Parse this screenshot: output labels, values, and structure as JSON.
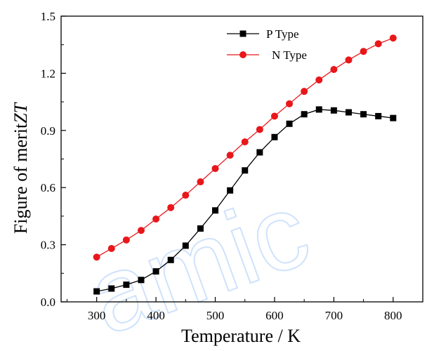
{
  "chart_data": {
    "type": "line",
    "xlabel": "Temperature / K",
    "ylabel_prefix": "Figure of merit",
    "ylabel_italic": "ZT",
    "xlim": [
      240,
      850
    ],
    "ylim": [
      0.0,
      1.5
    ],
    "x_ticks": [
      300,
      400,
      500,
      600,
      700,
      800
    ],
    "x_tick_labels": [
      "300",
      "400",
      "500",
      "600",
      "700",
      "800"
    ],
    "y_ticks": [
      0.0,
      0.3,
      0.6,
      0.9,
      1.2,
      1.5
    ],
    "y_tick_labels": [
      "0.0",
      "0.3",
      "0.6",
      "0.9",
      "1.2",
      "1.5"
    ],
    "grid": false,
    "legend_position": "top-center",
    "x": [
      300,
      325,
      350,
      375,
      400,
      425,
      450,
      475,
      500,
      525,
      550,
      575,
      600,
      625,
      650,
      675,
      700,
      725,
      750,
      775,
      800
    ],
    "series": [
      {
        "name": "P Type",
        "color": "#000000",
        "marker": "square",
        "values": [
          0.055,
          0.07,
          0.09,
          0.115,
          0.16,
          0.22,
          0.295,
          0.385,
          0.48,
          0.585,
          0.69,
          0.785,
          0.865,
          0.935,
          0.985,
          1.01,
          1.005,
          0.995,
          0.985,
          0.975,
          0.965
        ]
      },
      {
        "name": "N Type",
        "color": "#e8171b",
        "marker": "circle",
        "values": [
          0.235,
          0.28,
          0.325,
          0.375,
          0.435,
          0.495,
          0.56,
          0.63,
          0.7,
          0.77,
          0.84,
          0.905,
          0.975,
          1.04,
          1.105,
          1.165,
          1.22,
          1.27,
          1.315,
          1.355,
          1.385
        ]
      }
    ]
  },
  "watermark": {
    "text": "amic",
    "color": "#cfe2fb"
  }
}
